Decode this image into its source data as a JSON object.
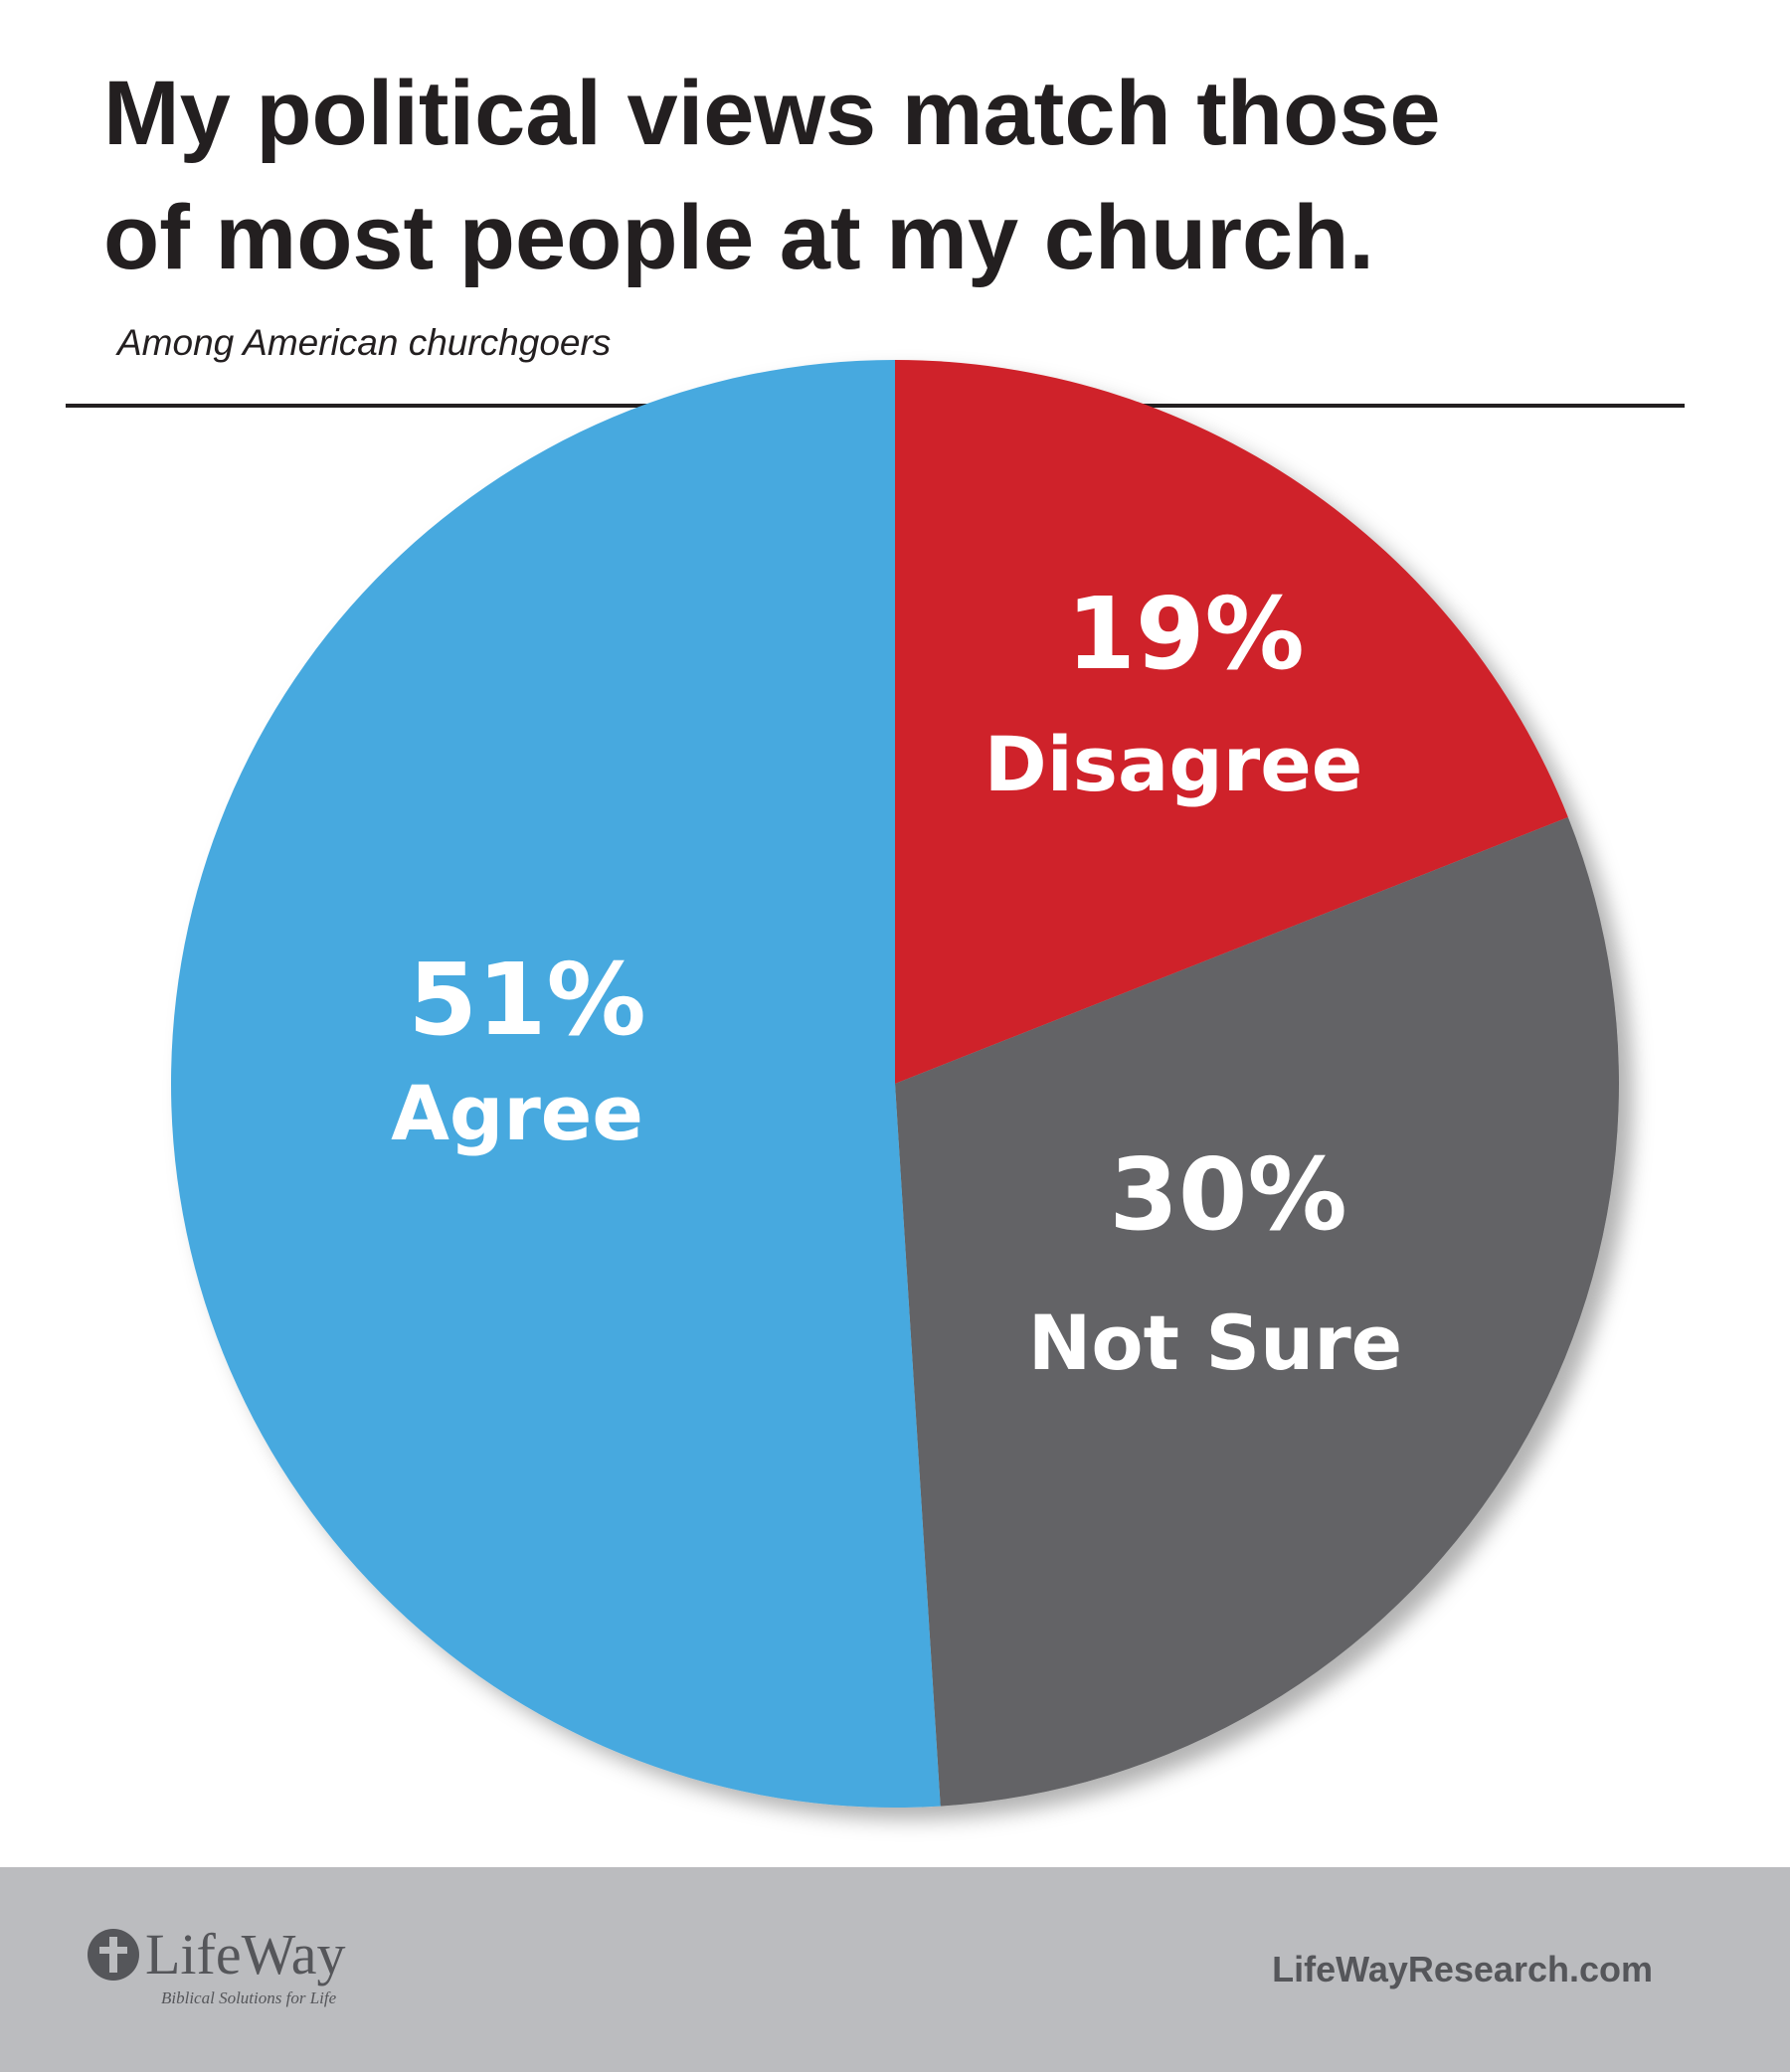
{
  "chart_data": {
    "type": "pie",
    "title": [
      "My political views match those",
      "of most people at my church."
    ],
    "subtitle": "Among American churchgoers",
    "categories": [
      "Disagree",
      "Not Sure",
      "Agree"
    ],
    "values": [
      19,
      30,
      51
    ],
    "value_labels": [
      "19%",
      "30%",
      "51%"
    ],
    "colors": [
      "#cf2229",
      "#636466",
      "#47a9df"
    ]
  },
  "footer": {
    "logo": "LifeWay",
    "tagline": "Biblical Solutions for Life",
    "website": "LifeWayResearch.com"
  }
}
